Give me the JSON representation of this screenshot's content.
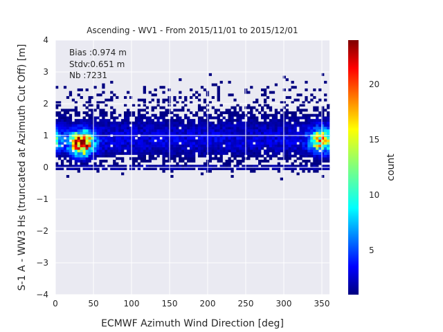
{
  "chart_data": {
    "type": "heatmap",
    "title": "Ascending - WV1 - From 2015/11/01 to 2015/12/01",
    "xlabel": "ECMWF Azimuth Wind Direction [deg]",
    "ylabel": "S-1 A - WW3 Hs (truncated at Azimuth Cut Off) [m]",
    "xlim": [
      0,
      360
    ],
    "ylim": [
      -4,
      4
    ],
    "x_ticks": [
      "0",
      "50",
      "100",
      "150",
      "200",
      "250",
      "300",
      "350"
    ],
    "y_ticks": [
      "−4",
      "−3",
      "−2",
      "−1",
      "0",
      "1",
      "2",
      "3",
      "4"
    ],
    "x_tick_values": [
      0,
      50,
      100,
      150,
      200,
      250,
      300,
      350
    ],
    "y_tick_values": [
      -4,
      -3,
      -2,
      -1,
      0,
      1,
      2,
      3,
      4
    ],
    "grid": true,
    "colormap": "jet",
    "colorbar": {
      "label": "count",
      "min": 1,
      "max": 24,
      "ticks": [
        "5",
        "10",
        "15",
        "20"
      ],
      "tick_values": [
        5,
        10,
        15,
        20
      ]
    },
    "annotations": {
      "bias": "Bias :0.974 m",
      "stdv": "Stdv:0.651 m",
      "nb": "Nb :7231"
    },
    "density_peaks": [
      {
        "x": 35,
        "y": 0.75,
        "count": 24
      },
      {
        "x": 350,
        "y": 0.85,
        "count": 16
      }
    ]
  },
  "colors": {
    "background": "#eaeaf2",
    "grid": "#ffffff",
    "text": "#262626"
  }
}
